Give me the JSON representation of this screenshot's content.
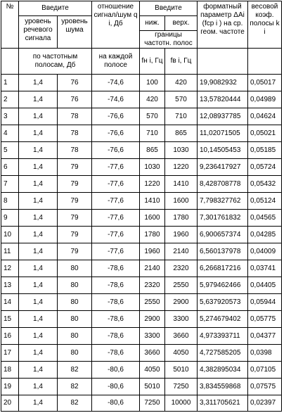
{
  "header": {
    "num": "№",
    "vvedite_left": "Введите",
    "speech_level": "уровень речевого сигнала",
    "noise_level": "уровень шума",
    "snr": "отношение сигнал/шум q i, Дб",
    "vvedite_right": "Введите",
    "lower": "ниж.",
    "upper": "верх.",
    "bounds": "границы частотн. полос",
    "format_param": "форматный параметр ΔAi (fср i ) на ср. геом. частоте",
    "weight": "весовой коэф. полосы k i",
    "per_band": "по частотным полосам, Дб",
    "per_band_each": "на каждой полосе",
    "fn_unit": "fн i, Гц",
    "fv_unit": "fв i, Гц"
  },
  "rows": [
    [
      "1",
      "1,4",
      "76",
      "-74,6",
      "100",
      "420",
      "19,9082932",
      "0,05017"
    ],
    [
      "2",
      "1,4",
      "76",
      "-74,6",
      "420",
      "570",
      "13,57820444",
      "0,04989"
    ],
    [
      "3",
      "1,4",
      "78",
      "-76,6",
      "570",
      "710",
      "12,08937785",
      "0,04624"
    ],
    [
      "4",
      "1,4",
      "78",
      "-76,6",
      "710",
      "865",
      "11,02071505",
      "0,05021"
    ],
    [
      "5",
      "1,4",
      "78",
      "-76,6",
      "865",
      "1030",
      "10,14505453",
      "0,05185"
    ],
    [
      "6",
      "1,4",
      "79",
      "-77,6",
      "1030",
      "1220",
      "9,236417927",
      "0,05724"
    ],
    [
      "7",
      "1,4",
      "79",
      "-77,6",
      "1220",
      "1410",
      "8,428708778",
      "0,05432"
    ],
    [
      "8",
      "1,4",
      "79",
      "-77,6",
      "1410",
      "1600",
      "7,798327762",
      "0,05124"
    ],
    [
      "9",
      "1,4",
      "79",
      "-77,6",
      "1600",
      "1780",
      "7,301761832",
      "0,04565"
    ],
    [
      "10",
      "1,4",
      "79",
      "-77,6",
      "1780",
      "1960",
      "6,900657374",
      "0,04285"
    ],
    [
      "11",
      "1,4",
      "79",
      "-77,6",
      "1960",
      "2140",
      "6,560137978",
      "0,04009"
    ],
    [
      "12",
      "1,4",
      "80",
      "-78,6",
      "2140",
      "2320",
      "6,266817216",
      "0,03741"
    ],
    [
      "13",
      "1,4",
      "80",
      "-78,6",
      "2320",
      "2550",
      "5,979462466",
      "0,04405"
    ],
    [
      "14",
      "1,4",
      "80",
      "-78,6",
      "2550",
      "2900",
      "5,637920573",
      "0,05944"
    ],
    [
      "15",
      "1,4",
      "80",
      "-78,6",
      "2900",
      "3300",
      "5,274679402",
      "0,05775"
    ],
    [
      "16",
      "1,4",
      "80",
      "-78,6",
      "3300",
      "3660",
      "4,973393711",
      "0,04377"
    ],
    [
      "17",
      "1,4",
      "80",
      "-78,6",
      "3660",
      "4050",
      "4,727585205",
      "0,0398"
    ],
    [
      "18",
      "1,4",
      "82",
      "-80,6",
      "4050",
      "5010",
      "4,382895034",
      "0,07105"
    ],
    [
      "19",
      "1,4",
      "82",
      "-80,6",
      "5010",
      "7250",
      "3,834559868",
      "0,07575"
    ],
    [
      "20",
      "1,4",
      "82",
      "-80,6",
      "7250",
      "10000",
      "3,311705621",
      "0,02397"
    ]
  ]
}
